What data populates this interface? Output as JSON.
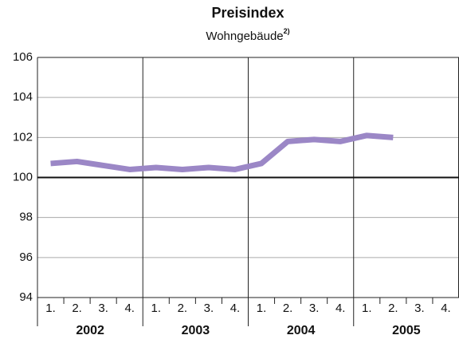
{
  "chart_data": {
    "type": "line",
    "title": "Preisindex",
    "subtitle": "Wohngebäude",
    "subtitle_note": "2)",
    "categories": [
      "1.",
      "2.",
      "3.",
      "4.",
      "1.",
      "2.",
      "3.",
      "4.",
      "1.",
      "2.",
      "3.",
      "4.",
      "1.",
      "2.",
      "3.",
      "4."
    ],
    "groups": [
      "2002",
      "2003",
      "2004",
      "2005"
    ],
    "series": [
      {
        "name": "Wohngebäude",
        "color": "#9b87c6",
        "values": [
          100.7,
          100.8,
          100.6,
          100.4,
          100.5,
          100.4,
          100.5,
          100.4,
          100.7,
          101.8,
          101.9,
          101.8,
          102.1,
          102.0,
          null,
          null
        ]
      }
    ],
    "ylim": [
      94,
      106
    ],
    "yticks": [
      94,
      96,
      98,
      100,
      102,
      104,
      106
    ],
    "grid": true,
    "reference_line": 100
  }
}
